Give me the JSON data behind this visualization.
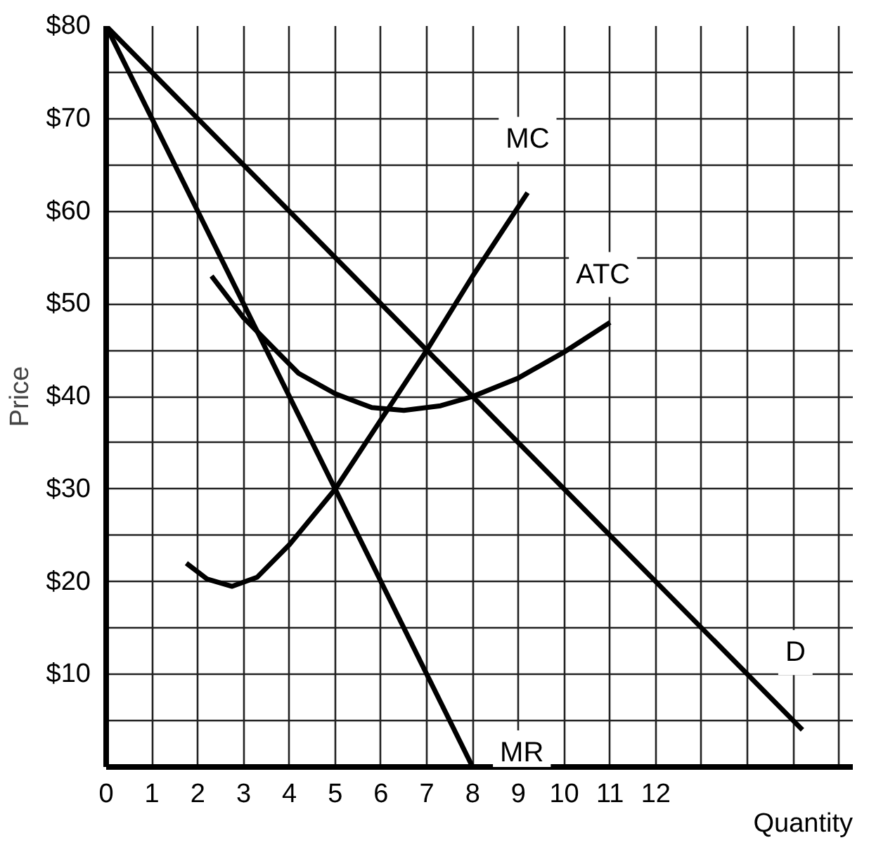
{
  "chart_data": {
    "type": "line",
    "xlabel": "Quantity",
    "ylabel": "Price",
    "xlim": [
      0,
      16.3
    ],
    "ylim": [
      0,
      80
    ],
    "xticks": [
      0,
      1,
      2,
      3,
      4,
      5,
      6,
      7,
      8,
      9,
      10,
      11,
      12,
      {
        "value": 13,
        "label": null
      },
      {
        "value": 14,
        "label": null
      },
      {
        "value": 15,
        "label": null
      },
      {
        "value": 16,
        "label": null
      }
    ],
    "yticks": [
      {
        "value": 0,
        "label": null
      },
      {
        "value": 5,
        "label": null
      },
      {
        "value": 10,
        "label": "$10"
      },
      {
        "value": 15,
        "label": null
      },
      {
        "value": 20,
        "label": "$20"
      },
      {
        "value": 25,
        "label": null
      },
      {
        "value": 30,
        "label": "$30"
      },
      {
        "value": 35,
        "label": null
      },
      {
        "value": 40,
        "label": "$40"
      },
      {
        "value": 45,
        "label": null
      },
      {
        "value": 50,
        "label": "$50"
      },
      {
        "value": 55,
        "label": null
      },
      {
        "value": 60,
        "label": "$60"
      },
      {
        "value": 65,
        "label": null
      },
      {
        "value": 70,
        "label": "$70"
      },
      {
        "value": 75,
        "label": null
      },
      {
        "value": 80,
        "label": "$80"
      }
    ],
    "grid": true,
    "marker": "none",
    "line_style": "solid",
    "series": [
      {
        "name": "MC",
        "color": "#000000",
        "x": [
          1.75,
          2.2,
          2.75,
          3.3,
          4,
          5,
          6,
          7,
          8,
          9.2
        ],
        "values": [
          22,
          20.3,
          19.5,
          20.5,
          24,
          30,
          37.5,
          45,
          53,
          62
        ]
      },
      {
        "name": "ATC",
        "color": "#000000",
        "x": [
          2.3,
          3,
          3.5,
          4.2,
          5,
          5.8,
          6.5,
          7.3,
          8,
          9,
          10,
          11
        ],
        "values": [
          53,
          48.5,
          46,
          42.5,
          40.3,
          38.8,
          38.5,
          39,
          40,
          42,
          44.8,
          48
        ]
      },
      {
        "name": "D",
        "color": "#000000",
        "x": [
          0,
          15.2
        ],
        "values": [
          80,
          4
        ]
      },
      {
        "name": "MR",
        "color": "#000000",
        "x": [
          0,
          8
        ],
        "values": [
          80,
          0
        ]
      }
    ]
  }
}
